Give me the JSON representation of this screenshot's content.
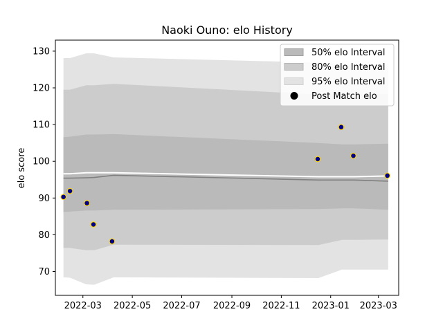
{
  "chart_data": {
    "type": "line",
    "title": "Naoki Ouno: elo History",
    "xlabel": "",
    "ylabel": "elo score",
    "xlim": [
      "2022-01-26",
      "2023-03-26"
    ],
    "ylim": [
      63.5,
      133
    ],
    "x_ticks": [
      "2022-03",
      "2022-05",
      "2022-07",
      "2022-09",
      "2022-11",
      "2023-01",
      "2023-03"
    ],
    "y_ticks": [
      70,
      80,
      90,
      100,
      110,
      120,
      130
    ],
    "legend_position": "top-right",
    "legend": [
      "50% elo Interval",
      "80% elo Interval",
      "95% elo Interval",
      "Post Match elo"
    ],
    "colors": {
      "band95": "#e3e3e3",
      "band80": "#cccccc",
      "band50": "#bababa",
      "mean_line": "#808080",
      "prior_line": "#ffffff",
      "point_fill": "#00008b",
      "point_edge": "#ffd700"
    },
    "band_dates": [
      "2022-02-05",
      "2022-02-13",
      "2022-03-05",
      "2022-03-15",
      "2022-04-08",
      "2022-12-17",
      "2023-01-15",
      "2023-01-30",
      "2023-03-13"
    ],
    "band95": {
      "lower": [
        68.4,
        68.3,
        66.5,
        66.4,
        68.4,
        68.2,
        70.5,
        70.5,
        70.5
      ],
      "upper": [
        128.1,
        128.1,
        129.4,
        129.4,
        128.3,
        126.9,
        126.4,
        126.4,
        126.4
      ]
    },
    "band80": {
      "lower": [
        76.4,
        76.4,
        75.8,
        75.8,
        77.3,
        77.2,
        78.6,
        78.6,
        78.7
      ],
      "upper": [
        119.5,
        119.5,
        120.7,
        120.7,
        121.1,
        118.2,
        118.3,
        118.3,
        118.3
      ]
    },
    "band50": {
      "lower": [
        86.2,
        86.3,
        86.6,
        86.6,
        86.8,
        87.0,
        87.2,
        87.2,
        86.8
      ],
      "upper": [
        106.6,
        106.7,
        107.3,
        107.3,
        107.4,
        105.0,
        104.6,
        104.6,
        104.8
      ]
    },
    "mean_line": [
      95.4,
      95.4,
      95.5,
      95.6,
      96.2,
      94.9,
      94.9,
      94.9,
      94.6
    ],
    "prior_line": [
      96.6,
      96.6,
      96.9,
      96.9,
      96.9,
      95.8,
      95.8,
      95.8,
      96.0
    ],
    "points": {
      "x": [
        "2022-02-05",
        "2022-02-13",
        "2022-03-06",
        "2022-03-14",
        "2022-04-06",
        "2022-12-16",
        "2023-01-14",
        "2023-01-29",
        "2023-03-12"
      ],
      "y": [
        90.3,
        91.9,
        88.6,
        82.8,
        78.2,
        100.6,
        109.3,
        101.5,
        96.1
      ]
    }
  }
}
